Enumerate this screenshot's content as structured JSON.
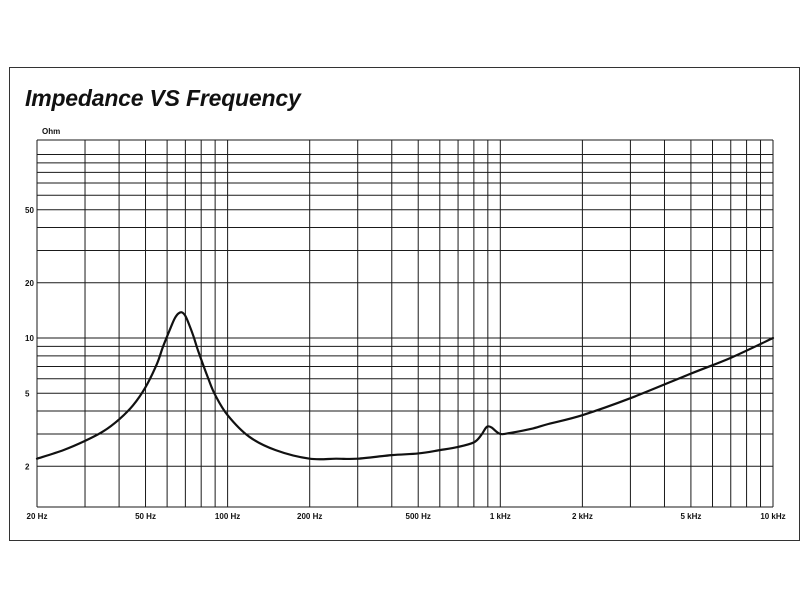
{
  "colors": {
    "curve": "#111111",
    "grid": "#1a1a1a",
    "background": "#ffffff"
  },
  "chart_data": {
    "type": "line",
    "title": "Impedance VS Frequency",
    "ylabel": "Ohm",
    "xlabel": "",
    "x_scale": "log",
    "y_scale": "log",
    "xlim": [
      20,
      10000
    ],
    "ylim": [
      1.2,
      120
    ],
    "grid": true,
    "x_ticks": [
      {
        "value": 20,
        "label": "20 Hz"
      },
      {
        "value": 50,
        "label": "50 Hz"
      },
      {
        "value": 100,
        "label": "100 Hz"
      },
      {
        "value": 200,
        "label": "200 Hz"
      },
      {
        "value": 500,
        "label": "500 Hz"
      },
      {
        "value": 1000,
        "label": "1 kHz"
      },
      {
        "value": 2000,
        "label": "2 kHz"
      },
      {
        "value": 5000,
        "label": "5 kHz"
      },
      {
        "value": 10000,
        "label": "10 kHz"
      }
    ],
    "y_ticks": [
      {
        "value": 2,
        "label": "2"
      },
      {
        "value": 5,
        "label": "5"
      },
      {
        "value": 10,
        "label": "10"
      },
      {
        "value": 20,
        "label": "20"
      },
      {
        "value": 50,
        "label": "50"
      }
    ],
    "series": [
      {
        "x": [
          20,
          25,
          30,
          35,
          40,
          45,
          50,
          55,
          58,
          62,
          64,
          66,
          68,
          70,
          72,
          75,
          78,
          85,
          90,
          100,
          120,
          150,
          200,
          250,
          300,
          400,
          500,
          600,
          700,
          800,
          850,
          880,
          900,
          930,
          1000,
          1100,
          1300,
          1500,
          2000,
          3000,
          5000,
          7000,
          10000
        ],
        "y": [
          2.2,
          2.45,
          2.75,
          3.1,
          3.6,
          4.3,
          5.4,
          7.2,
          9.0,
          11.5,
          12.8,
          13.6,
          13.8,
          13.2,
          12.0,
          10.2,
          8.5,
          6.0,
          4.9,
          3.8,
          2.9,
          2.45,
          2.2,
          2.2,
          2.2,
          2.3,
          2.35,
          2.45,
          2.55,
          2.7,
          2.95,
          3.2,
          3.3,
          3.25,
          3.0,
          3.05,
          3.2,
          3.4,
          3.8,
          4.7,
          6.4,
          7.8,
          10.0
        ]
      }
    ]
  }
}
